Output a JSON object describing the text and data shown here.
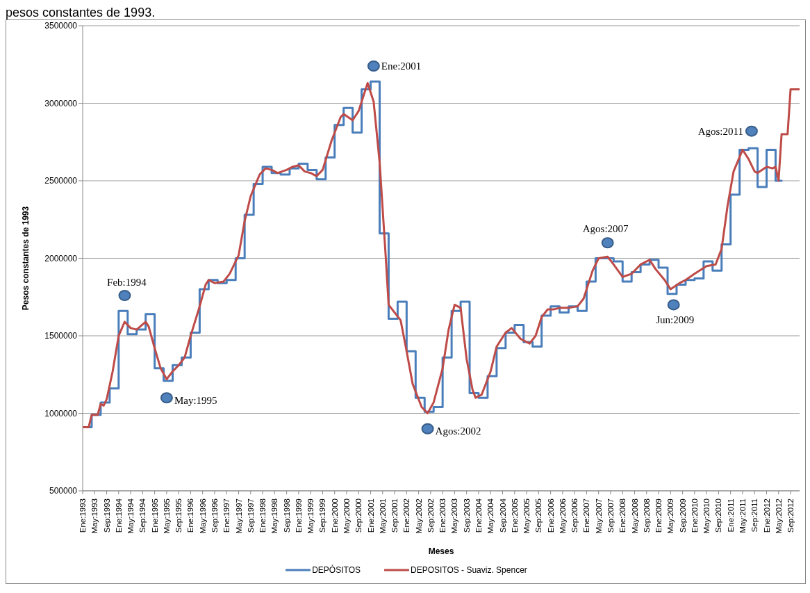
{
  "chart_data": {
    "type": "line",
    "title": "pesos constantes de 1993.",
    "xlabel": "Meses",
    "ylabel": "Pesos constantes de 1993",
    "xlim": [
      "1993-01",
      "2012-12"
    ],
    "xticks": [
      {
        "value": "1993-01",
        "label": "Ene:1993"
      },
      {
        "value": "1993-05",
        "label": "May:1993"
      },
      {
        "value": "1993-09",
        "label": "Sep:1993"
      },
      {
        "value": "1994-01",
        "label": "Ene:1994"
      },
      {
        "value": "1994-05",
        "label": "May:1994"
      },
      {
        "value": "1994-09",
        "label": "Sep:1994"
      },
      {
        "value": "1995-01",
        "label": "Ene:1995"
      },
      {
        "value": "1995-05",
        "label": "May:1995"
      },
      {
        "value": "1995-09",
        "label": "Sep:1995"
      },
      {
        "value": "1996-01",
        "label": "Ene:1996"
      },
      {
        "value": "1996-05",
        "label": "May:1996"
      },
      {
        "value": "1996-09",
        "label": "Sep:1996"
      },
      {
        "value": "1997-01",
        "label": "Ene:1997"
      },
      {
        "value": "1997-05",
        "label": "May:1997"
      },
      {
        "value": "1997-09",
        "label": "Sep:1997"
      },
      {
        "value": "1998-01",
        "label": "Ene:1998"
      },
      {
        "value": "1998-05",
        "label": "May:1998"
      },
      {
        "value": "1998-09",
        "label": "Sep:1998"
      },
      {
        "value": "1999-01",
        "label": "Ene:1999"
      },
      {
        "value": "1999-05",
        "label": "May:1999"
      },
      {
        "value": "1999-09",
        "label": "Sep:1999"
      },
      {
        "value": "2000-01",
        "label": "Ene:2000"
      },
      {
        "value": "2000-05",
        "label": "May:2000"
      },
      {
        "value": "2000-09",
        "label": "Sep:2000"
      },
      {
        "value": "2001-01",
        "label": "Ene:2001"
      },
      {
        "value": "2001-05",
        "label": "May:2001"
      },
      {
        "value": "2001-09",
        "label": "Sep:2001"
      },
      {
        "value": "2002-01",
        "label": "Ene:2002"
      },
      {
        "value": "2002-05",
        "label": "May:2002"
      },
      {
        "value": "2002-09",
        "label": "Sep:2002"
      },
      {
        "value": "2003-01",
        "label": "Ene:2003"
      },
      {
        "value": "2003-05",
        "label": "May:2003"
      },
      {
        "value": "2003-09",
        "label": "Sep:2003"
      },
      {
        "value": "2004-01",
        "label": "Ene:2004"
      },
      {
        "value": "2004-05",
        "label": "May:2004"
      },
      {
        "value": "2004-09",
        "label": "Sep:2004"
      },
      {
        "value": "2005-01",
        "label": "Ene:2005"
      },
      {
        "value": "2005-05",
        "label": "May:2005"
      },
      {
        "value": "2005-09",
        "label": "Sep:2005"
      },
      {
        "value": "2006-01",
        "label": "Ene:2006"
      },
      {
        "value": "2006-05",
        "label": "May:2006"
      },
      {
        "value": "2006-09",
        "label": "Sep:2006"
      },
      {
        "value": "2007-01",
        "label": "Ene:2007"
      },
      {
        "value": "2007-05",
        "label": "May:2007"
      },
      {
        "value": "2007-09",
        "label": "Sep:2007"
      },
      {
        "value": "2008-01",
        "label": "Ene:2008"
      },
      {
        "value": "2008-05",
        "label": "May:2008"
      },
      {
        "value": "2008-09",
        "label": "Sep:2008"
      },
      {
        "value": "2009-01",
        "label": "Ene:2009"
      },
      {
        "value": "2009-05",
        "label": "May:2009"
      },
      {
        "value": "2009-09",
        "label": "Sep:2009"
      },
      {
        "value": "2010-01",
        "label": "Ene:2010"
      },
      {
        "value": "2010-05",
        "label": "May:2010"
      },
      {
        "value": "2010-09",
        "label": "Sep:2010"
      },
      {
        "value": "2011-01",
        "label": "Ene:2011"
      },
      {
        "value": "2011-05",
        "label": "May:2011"
      },
      {
        "value": "2011-09",
        "label": "Sep:2011"
      },
      {
        "value": "2012-01",
        "label": "Ene:2012"
      },
      {
        "value": "2012-05",
        "label": "May:2012"
      },
      {
        "value": "2012-09",
        "label": "Sep:2012"
      }
    ],
    "ylim": [
      500000,
      3500000
    ],
    "yticks": [
      500000,
      1000000,
      1500000,
      2000000,
      2500000,
      3000000,
      3500000
    ],
    "grid": "y",
    "legend": "bottom",
    "marker": "none",
    "series": [
      {
        "name": "DEPÓSITOS",
        "type": "step",
        "color": "#4a7ebb",
        "x": [
          "1993-01",
          "1993-04",
          "1993-07",
          "1993-10",
          "1994-01",
          "1994-04",
          "1994-07",
          "1994-10",
          "1995-01",
          "1995-04",
          "1995-07",
          "1995-10",
          "1996-01",
          "1996-04",
          "1996-07",
          "1996-10",
          "1997-01",
          "1997-04",
          "1997-07",
          "1997-10",
          "1998-01",
          "1998-04",
          "1998-07",
          "1998-10",
          "1999-01",
          "1999-04",
          "1999-07",
          "1999-10",
          "2000-01",
          "2000-04",
          "2000-07",
          "2000-10",
          "2001-01",
          "2001-04",
          "2001-07",
          "2001-10",
          "2002-01",
          "2002-04",
          "2002-07",
          "2002-10",
          "2003-01",
          "2003-04",
          "2003-07",
          "2003-10",
          "2004-01",
          "2004-04",
          "2004-07",
          "2004-10",
          "2005-01",
          "2005-04",
          "2005-07",
          "2005-10",
          "2006-01",
          "2006-04",
          "2006-07",
          "2006-10",
          "2007-01",
          "2007-04",
          "2007-07",
          "2007-10",
          "2008-01",
          "2008-04",
          "2008-07",
          "2008-10",
          "2009-01",
          "2009-04",
          "2009-07",
          "2009-10",
          "2010-01",
          "2010-04",
          "2010-07",
          "2010-10",
          "2011-01",
          "2011-04",
          "2011-07",
          "2011-10",
          "2012-01",
          "2012-04",
          "2012-06"
        ],
        "values": [
          910000,
          990000,
          1070000,
          1160000,
          1660000,
          1510000,
          1540000,
          1640000,
          1290000,
          1210000,
          1310000,
          1360000,
          1520000,
          1800000,
          1860000,
          1840000,
          1860000,
          2000000,
          2280000,
          2480000,
          2590000,
          2550000,
          2540000,
          2580000,
          2610000,
          2570000,
          2510000,
          2650000,
          2860000,
          2970000,
          2810000,
          3090000,
          3140000,
          2160000,
          1610000,
          1720000,
          1400000,
          1100000,
          1010000,
          1040000,
          1360000,
          1660000,
          1720000,
          1130000,
          1100000,
          1240000,
          1420000,
          1520000,
          1570000,
          1460000,
          1430000,
          1630000,
          1690000,
          1650000,
          1690000,
          1660000,
          1850000,
          2000000,
          2000000,
          1980000,
          1850000,
          1910000,
          1960000,
          1990000,
          1940000,
          1770000,
          1830000,
          1860000,
          1870000,
          1980000,
          1920000,
          2090000,
          2410000,
          2700000,
          2710000,
          2460000,
          2700000,
          2500000,
          2500000
        ]
      },
      {
        "name": "DEPOSITOS - Suaviz. Spencer",
        "color": "#be4b48",
        "x": [
          "1993-01",
          "1993-03",
          "1993-04",
          "1993-06",
          "1993-07",
          "1993-08",
          "1993-09",
          "1993-11",
          "1994-01",
          "1994-03",
          "1994-05",
          "1994-07",
          "1994-10",
          "1994-11",
          "1995-01",
          "1995-03",
          "1995-05",
          "1995-07",
          "1995-09",
          "1995-11",
          "1996-01",
          "1996-04",
          "1996-06",
          "1996-07",
          "1996-09",
          "1996-12",
          "1997-02",
          "1997-05",
          "1997-07",
          "1997-09",
          "1997-12",
          "1998-02",
          "1998-04",
          "1998-06",
          "1998-09",
          "1998-11",
          "1999-01",
          "1999-03",
          "1999-05",
          "1999-07",
          "1999-09",
          "1999-12",
          "2000-03",
          "2000-04",
          "2000-07",
          "2000-09",
          "2000-12",
          "2001-02",
          "2001-04",
          "2001-06",
          "2001-07",
          "2001-09",
          "2001-11",
          "2002-01",
          "2002-03",
          "2002-06",
          "2002-08",
          "2002-10",
          "2003-01",
          "2003-03",
          "2003-05",
          "2003-07",
          "2003-09",
          "2003-11",
          "2003-12",
          "2004-02",
          "2004-05",
          "2004-07",
          "2004-10",
          "2004-12",
          "2005-03",
          "2005-06",
          "2005-08",
          "2005-10",
          "2005-12",
          "2006-02",
          "2006-04",
          "2006-07",
          "2006-10",
          "2006-12",
          "2007-03",
          "2007-05",
          "2007-08",
          "2007-10",
          "2008-01",
          "2008-04",
          "2008-07",
          "2008-10",
          "2008-12",
          "2009-03",
          "2009-05",
          "2009-08",
          "2009-10",
          "2010-01",
          "2010-05",
          "2010-08",
          "2010-10",
          "2010-12",
          "2011-02",
          "2011-05",
          "2011-07",
          "2011-09",
          "2011-10",
          "2012-01",
          "2012-03",
          "2012-04",
          "2012-05",
          "2012-06",
          "2012-08",
          "2012-09",
          "2012-12"
        ],
        "values": [
          910000,
          910000,
          990000,
          990000,
          1060000,
          1050000,
          1090000,
          1270000,
          1500000,
          1590000,
          1550000,
          1540000,
          1590000,
          1560000,
          1420000,
          1290000,
          1220000,
          1270000,
          1310000,
          1360000,
          1500000,
          1690000,
          1830000,
          1860000,
          1840000,
          1850000,
          1900000,
          2020000,
          2240000,
          2400000,
          2540000,
          2580000,
          2570000,
          2550000,
          2570000,
          2590000,
          2600000,
          2560000,
          2550000,
          2530000,
          2570000,
          2760000,
          2910000,
          2930000,
          2890000,
          2950000,
          3130000,
          3010000,
          2620000,
          2020000,
          1700000,
          1650000,
          1600000,
          1400000,
          1190000,
          1040000,
          1000000,
          1070000,
          1290000,
          1540000,
          1700000,
          1680000,
          1350000,
          1150000,
          1100000,
          1120000,
          1270000,
          1430000,
          1520000,
          1550000,
          1480000,
          1450000,
          1500000,
          1620000,
          1670000,
          1670000,
          1680000,
          1680000,
          1690000,
          1740000,
          1920000,
          2000000,
          2010000,
          1960000,
          1880000,
          1900000,
          1960000,
          1990000,
          1930000,
          1860000,
          1800000,
          1840000,
          1860000,
          1900000,
          1950000,
          1960000,
          2060000,
          2340000,
          2560000,
          2700000,
          2640000,
          2560000,
          2550000,
          2590000,
          2580000,
          2590000,
          2500000,
          2800000,
          2800000,
          3090000,
          3090000
        ]
      },
      {
        "type": "scatter",
        "color": "#4f81bd",
        "marker": "circle",
        "x": [
          "1994-03",
          "1995-05",
          "2001-02",
          "2002-08",
          "2007-08",
          "2009-06",
          "2011-08"
        ],
        "values": [
          1760000,
          1100000,
          3240000,
          900000,
          2100000,
          1700000,
          2820000
        ]
      }
    ],
    "annotations": [
      {
        "text": "Feb:1994",
        "x": "1994-03",
        "y": 1760000
      },
      {
        "text": "May:1995",
        "x": "1995-05",
        "y": 1100000
      },
      {
        "text": "Ene:2001",
        "x": "2001-02",
        "y": 3240000
      },
      {
        "text": "Agos:2002",
        "x": "2002-08",
        "y": 900000
      },
      {
        "text": "Agos:2007",
        "x": "2007-08",
        "y": 2100000
      },
      {
        "text": "Jun:2009",
        "x": "2009-06",
        "y": 1700000
      },
      {
        "text": "Agos:2011",
        "x": "2011-08",
        "y": 2820000
      }
    ]
  }
}
